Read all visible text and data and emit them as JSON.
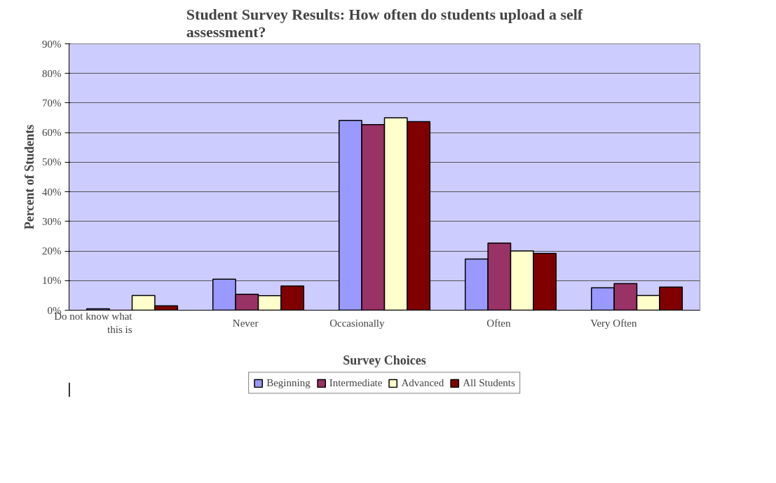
{
  "chart_data": {
    "type": "bar",
    "title": "Student Survey Results: How often do students upload a self assessment?",
    "xlabel": "Survey Choices",
    "ylabel": "Percent of Students",
    "categories": [
      "Do not know what this is",
      "Never",
      "Occasionally",
      "Often",
      "Very Often"
    ],
    "series": [
      {
        "name": "Beginning",
        "color": "#9999ff",
        "values": [
          0.5,
          10.5,
          64.1,
          17.3,
          7.6
        ]
      },
      {
        "name": "Intermediate",
        "color": "#993366",
        "values": [
          0,
          5.4,
          62.7,
          22.7,
          9.0
        ]
      },
      {
        "name": "Advanced",
        "color": "#ffffcc",
        "values": [
          5.0,
          4.9,
          65.0,
          20.0,
          5.0
        ]
      },
      {
        "name": "All Students",
        "color": "#800000",
        "values": [
          1.5,
          8.2,
          63.7,
          19.2,
          7.8
        ]
      }
    ],
    "ylim": [
      0,
      90
    ],
    "yticks": [
      {
        "value": 0,
        "label": "0%"
      },
      {
        "value": 10,
        "label": "10%"
      },
      {
        "value": 20,
        "label": "20%"
      },
      {
        "value": 30,
        "label": "30%"
      },
      {
        "value": 40,
        "label": "40%"
      },
      {
        "value": 50,
        "label": "50%"
      },
      {
        "value": 60,
        "label": "60%"
      },
      {
        "value": 70,
        "label": "70%"
      },
      {
        "value": 80,
        "label": "80%"
      },
      {
        "value": 90,
        "label": "90%"
      }
    ],
    "grid": "y",
    "legend": "bottom"
  }
}
